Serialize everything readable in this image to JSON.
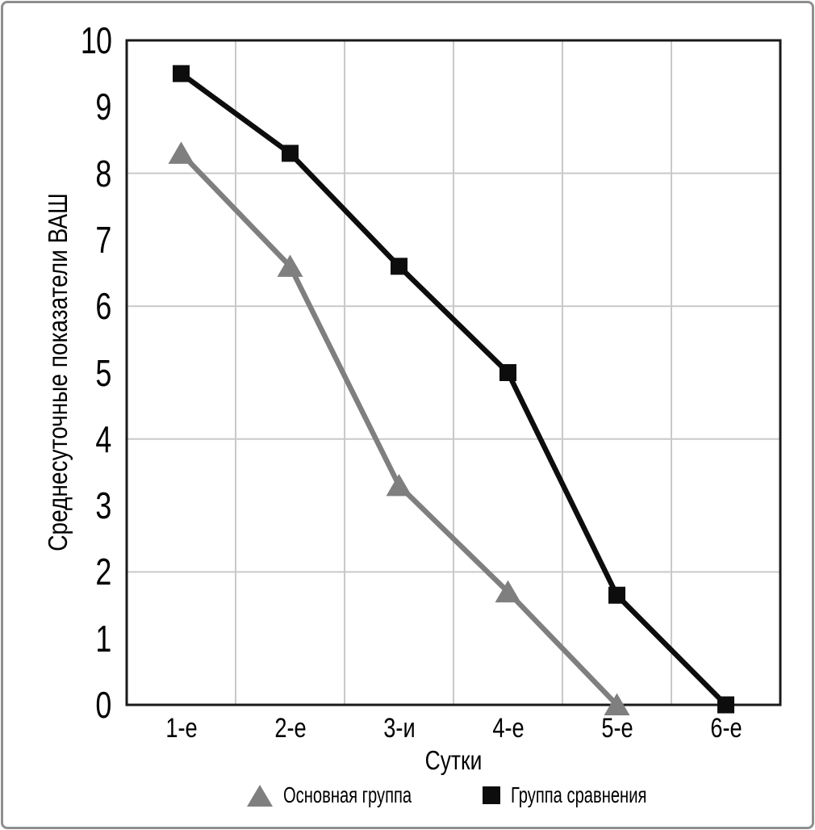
{
  "colors": {
    "background": "#ffffff",
    "outer_border": "#8f8f8f",
    "plot_frame": "#1a1a1a",
    "gridline": "#c9c9c9",
    "main_group": "#7f7f7f",
    "comparison_group": "#0d0d0d"
  },
  "chart_data": {
    "type": "line",
    "title": "",
    "xlabel": "Сутки",
    "ylabel": "Среднесуточные показатели ВАШ",
    "categories": [
      "1-е",
      "2-е",
      "3-и",
      "4-е",
      "5-е",
      "6-е"
    ],
    "y_ticks": [
      0,
      1,
      2,
      3,
      4,
      5,
      6,
      7,
      8,
      9,
      10
    ],
    "ylim": [
      0,
      10
    ],
    "grid": {
      "horizontal_at": [
        2,
        4,
        6,
        8
      ],
      "vertical": "between-categories",
      "on": true
    },
    "legend_position": "bottom",
    "series": [
      {
        "name": "Основная группа",
        "marker": "triangle",
        "color": "#7f7f7f",
        "x_categories": [
          "1-е",
          "2-е",
          "3-и",
          "4-е",
          "5-е"
        ],
        "values": [
          8.3,
          6.6,
          3.3,
          1.7,
          0
        ]
      },
      {
        "name": "Группа сравнения",
        "marker": "square",
        "color": "#0d0d0d",
        "x_categories": [
          "1-е",
          "2-е",
          "3-и",
          "4-е",
          "5-е",
          "6-е"
        ],
        "values": [
          9.5,
          8.3,
          6.6,
          5.0,
          1.65,
          0
        ]
      }
    ]
  }
}
